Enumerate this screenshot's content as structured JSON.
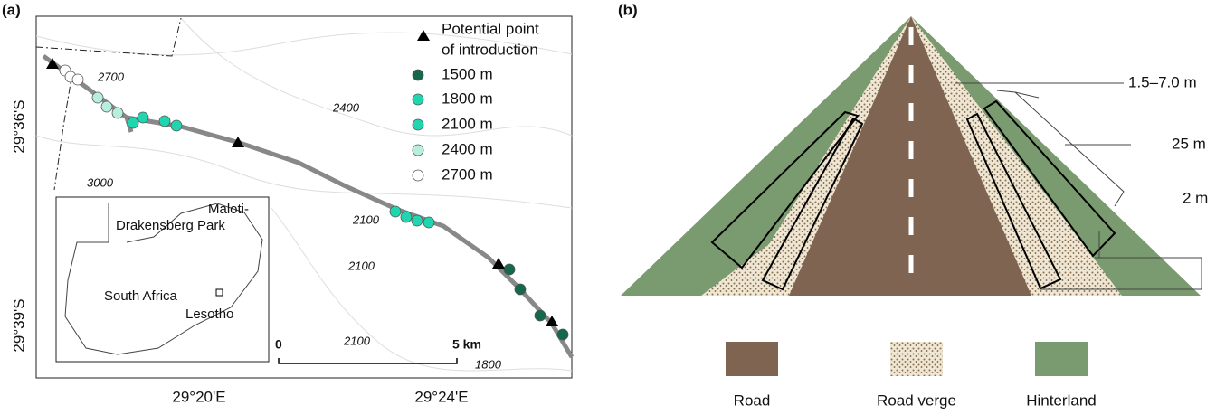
{
  "panel_a": {
    "label": "(a)",
    "legend": {
      "title": [
        "Potential point",
        "of introduction"
      ],
      "items": [
        "1500 m",
        "1800 m",
        "2100 m",
        "2400 m",
        "2700 m"
      ]
    },
    "contours": [
      "2700",
      "2400",
      "3000",
      "2100",
      "2100",
      "2100",
      "1800"
    ],
    "lat_labels": [
      "29°36'S",
      "29°39'S"
    ],
    "lon_labels": [
      "29°20'E",
      "29°24'E"
    ],
    "inset": {
      "park": [
        "Maloti-",
        "Drakensberg Park"
      ],
      "country": "South Africa",
      "lesotho": "Lesotho"
    },
    "scale": [
      "0",
      "5 km"
    ]
  },
  "panel_b": {
    "label": "(b)",
    "widths": [
      "1.5–7.0 m",
      "25 m",
      "2 m"
    ],
    "legend": [
      "Road",
      "Road verge",
      "Hinterland"
    ]
  }
}
